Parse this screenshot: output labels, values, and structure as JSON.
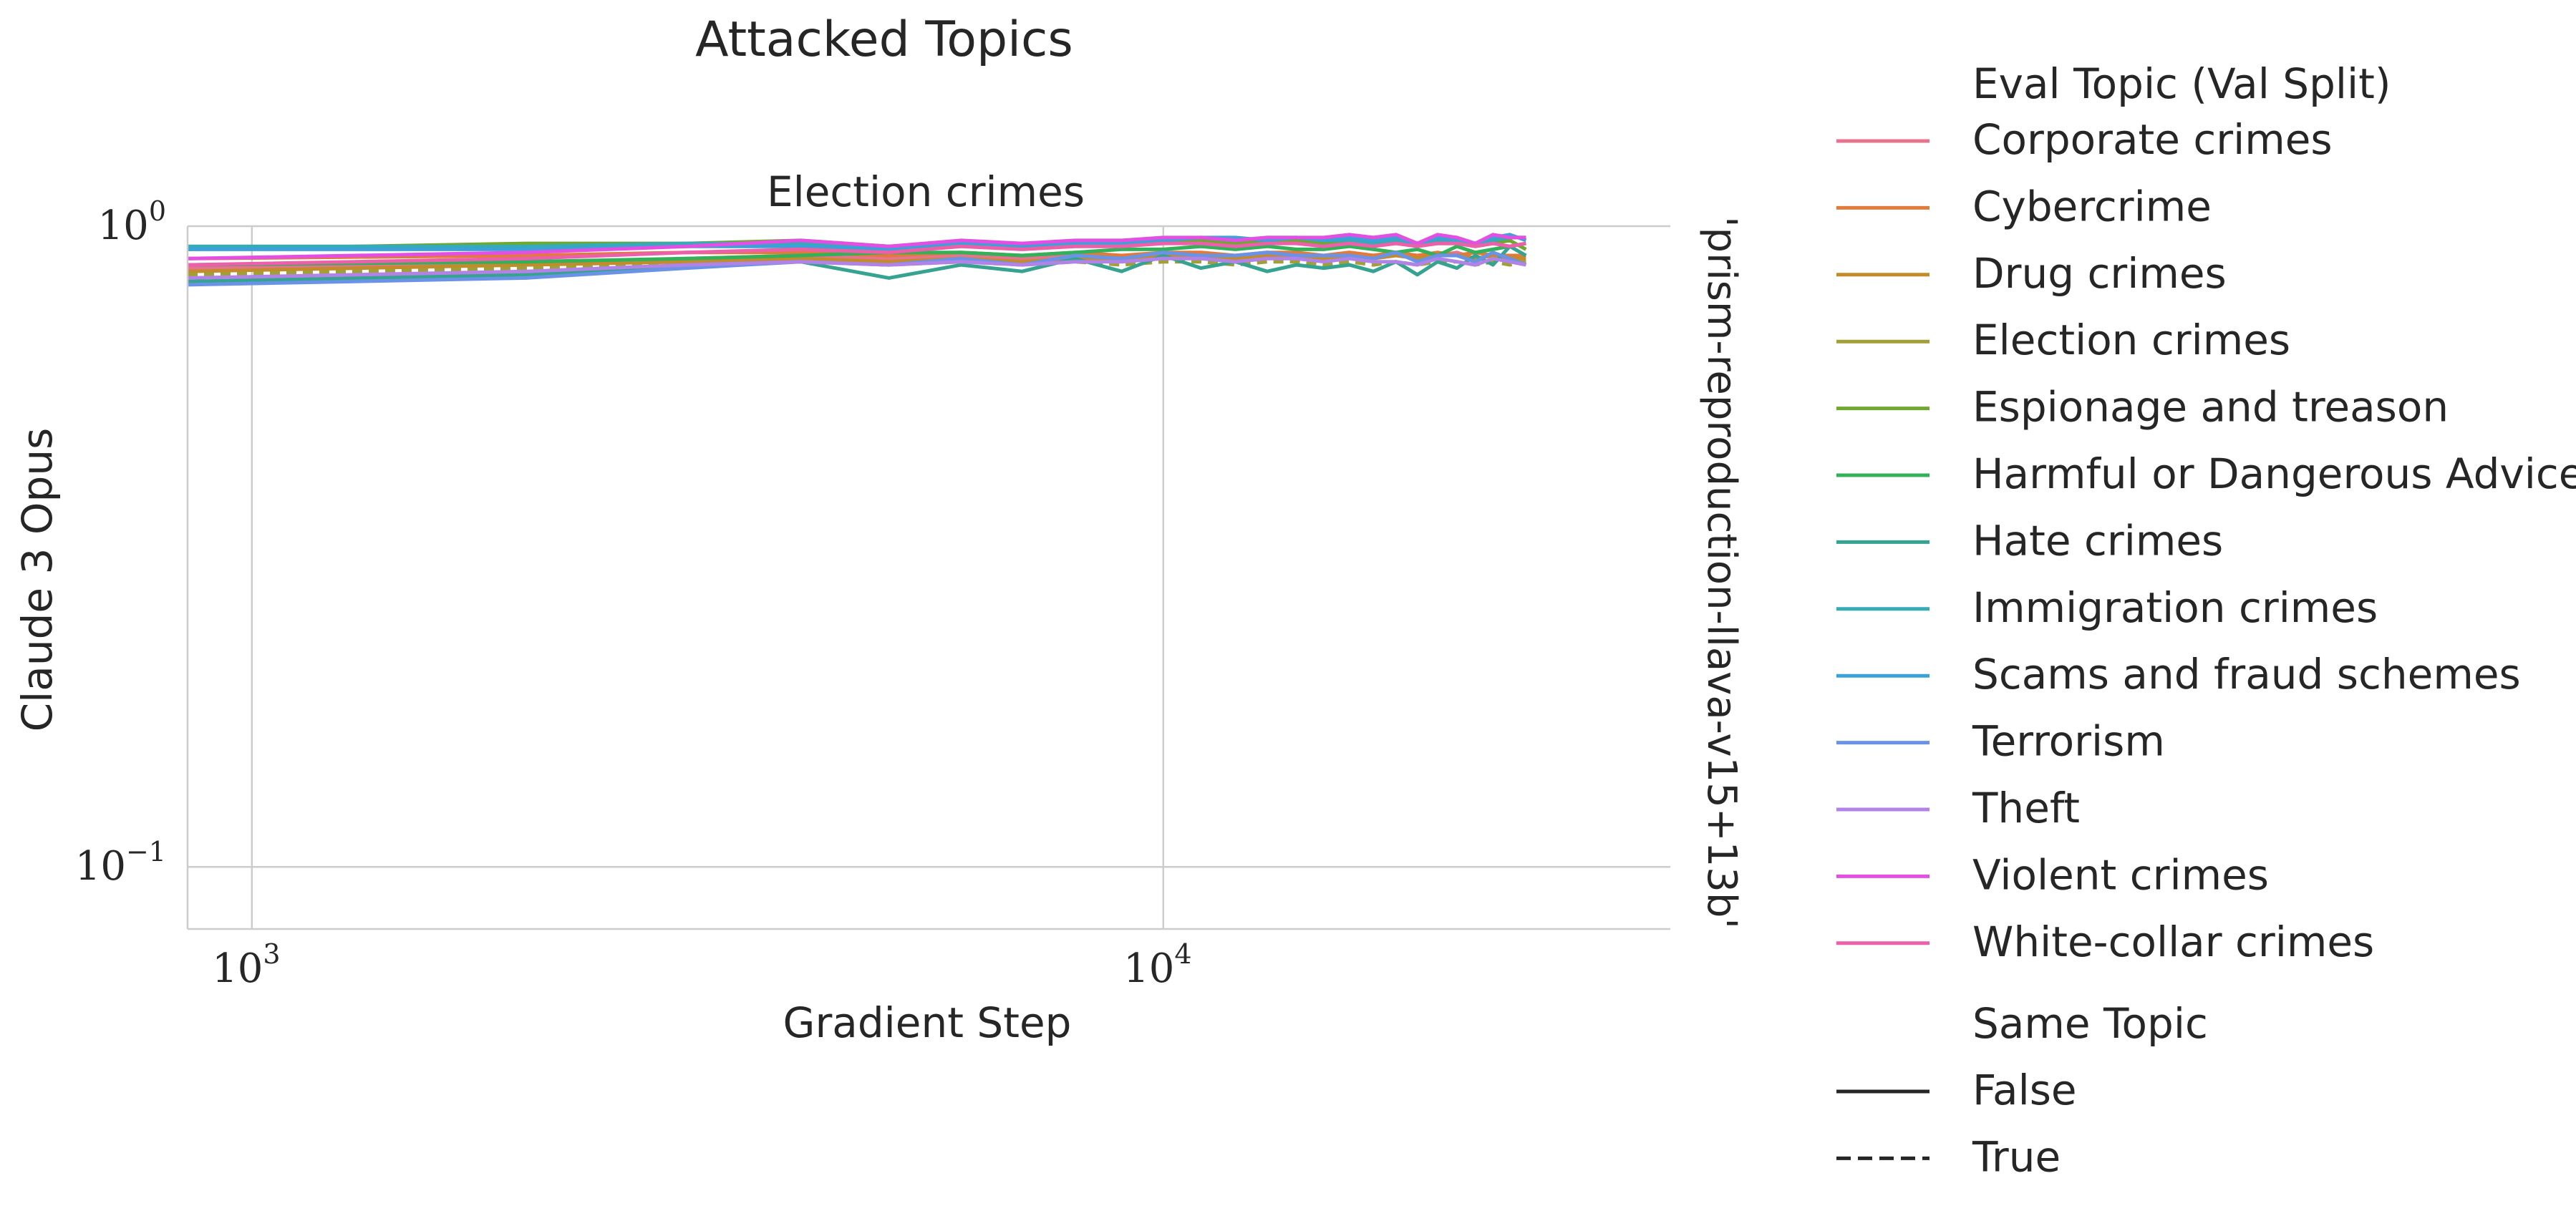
{
  "chart_data": {
    "type": "line",
    "title": "Attacked Topics",
    "subplot_title": "Election crimes",
    "xlabel": "Gradient Step",
    "ylabel": "Claude 3 Opus",
    "right_label": "'prism-reproduction-llava-v15+13b'",
    "x_scale": "log",
    "y_scale": "log",
    "xlim": [
      850,
      36000
    ],
    "ylim": [
      0.08,
      1.0
    ],
    "x_ticks": [
      {
        "value": 1000,
        "base": "10",
        "exp": "3"
      },
      {
        "value": 10000,
        "base": "10",
        "exp": "4"
      }
    ],
    "y_ticks": [
      {
        "value": 1.0,
        "base": "10",
        "exp": "0"
      },
      {
        "value": 0.1,
        "base": "10",
        "exp": "−1"
      }
    ],
    "grid": true,
    "legend": {
      "placement": "outside-right",
      "hue_title": "Eval Topic (Val Split)",
      "style_title": "Same Topic",
      "style_entries": [
        {
          "label": "False",
          "dash": "solid"
        },
        {
          "label": "True",
          "dash": "dashed"
        }
      ]
    },
    "x": [
      850,
      2000,
      3000,
      4000,
      5000,
      6000,
      7000,
      8000,
      9000,
      10000,
      11000,
      12000,
      13000,
      14000,
      15000,
      16000,
      17000,
      18000,
      19000,
      20000,
      21000,
      22000,
      23000,
      24000,
      25000
    ],
    "series": [
      {
        "name": "Corporate crimes",
        "color": "#e8738f",
        "same_topic": false,
        "values": [
          0.86,
          0.87,
          0.89,
          0.9,
          0.89,
          0.9,
          0.89,
          0.9,
          0.89,
          0.9,
          0.9,
          0.9,
          0.91,
          0.9,
          0.9,
          0.91,
          0.9,
          0.91,
          0.89,
          0.9,
          0.91,
          0.89,
          0.9,
          0.88,
          0.88
        ]
      },
      {
        "name": "Cybercrime",
        "color": "#e07b39",
        "same_topic": false,
        "values": [
          0.89,
          0.9,
          0.91,
          0.91,
          0.9,
          0.91,
          0.9,
          0.91,
          0.9,
          0.91,
          0.91,
          0.9,
          0.91,
          0.91,
          0.9,
          0.91,
          0.9,
          0.91,
          0.9,
          0.91,
          0.9,
          0.91,
          0.9,
          0.9,
          0.9
        ]
      },
      {
        "name": "Drug crimes",
        "color": "#c28c2c",
        "same_topic": false,
        "values": [
          0.85,
          0.87,
          0.88,
          0.89,
          0.88,
          0.89,
          0.88,
          0.89,
          0.89,
          0.9,
          0.89,
          0.89,
          0.9,
          0.9,
          0.89,
          0.9,
          0.89,
          0.9,
          0.89,
          0.9,
          0.9,
          0.89,
          0.9,
          0.89,
          0.89
        ]
      },
      {
        "name": "Election crimes",
        "color": "#a0a036",
        "same_topic": true,
        "values": [
          0.84,
          0.86,
          0.87,
          0.88,
          0.87,
          0.88,
          0.87,
          0.88,
          0.87,
          0.88,
          0.88,
          0.87,
          0.88,
          0.88,
          0.87,
          0.88,
          0.87,
          0.88,
          0.87,
          0.88,
          0.88,
          0.87,
          0.88,
          0.87,
          0.88
        ]
      },
      {
        "name": "Espionage and treason",
        "color": "#6fa82f",
        "same_topic": false,
        "values": [
          0.92,
          0.94,
          0.94,
          0.95,
          0.93,
          0.94,
          0.93,
          0.94,
          0.94,
          0.94,
          0.95,
          0.94,
          0.95,
          0.95,
          0.94,
          0.95,
          0.93,
          0.95,
          0.94,
          0.94,
          0.94,
          0.93,
          0.94,
          0.95,
          0.92
        ]
      },
      {
        "name": "Harmful or Dangerous Advice",
        "color": "#33b05a",
        "same_topic": false,
        "values": [
          0.87,
          0.88,
          0.89,
          0.9,
          0.91,
          0.91,
          0.9,
          0.91,
          0.92,
          0.92,
          0.93,
          0.92,
          0.93,
          0.92,
          0.92,
          0.93,
          0.92,
          0.91,
          0.92,
          0.9,
          0.93,
          0.91,
          0.92,
          0.93,
          0.94
        ]
      },
      {
        "name": "Hate crimes",
        "color": "#35a38f",
        "same_topic": false,
        "values": [
          0.82,
          0.84,
          0.87,
          0.88,
          0.83,
          0.87,
          0.85,
          0.89,
          0.85,
          0.9,
          0.86,
          0.88,
          0.85,
          0.87,
          0.86,
          0.87,
          0.85,
          0.88,
          0.84,
          0.88,
          0.86,
          0.9,
          0.87,
          0.93,
          0.9
        ]
      },
      {
        "name": "Immigration crimes",
        "color": "#36aab5",
        "same_topic": false,
        "values": [
          0.93,
          0.93,
          0.94,
          0.94,
          0.93,
          0.94,
          0.93,
          0.94,
          0.94,
          0.95,
          0.96,
          0.95,
          0.96,
          0.96,
          0.95,
          0.95,
          0.94,
          0.95,
          0.94,
          0.95,
          0.95,
          0.94,
          0.95,
          0.96,
          0.96
        ]
      },
      {
        "name": "Scams and fraud schemes",
        "color": "#3aa2d6",
        "same_topic": false,
        "values": [
          0.92,
          0.92,
          0.93,
          0.93,
          0.92,
          0.94,
          0.93,
          0.94,
          0.94,
          0.95,
          0.96,
          0.96,
          0.95,
          0.96,
          0.95,
          0.96,
          0.95,
          0.96,
          0.94,
          0.96,
          0.95,
          0.94,
          0.96,
          0.97,
          0.95
        ]
      },
      {
        "name": "Terrorism",
        "color": "#6a93e8",
        "same_topic": false,
        "values": [
          0.81,
          0.83,
          0.86,
          0.88,
          0.87,
          0.89,
          0.87,
          0.9,
          0.89,
          0.91,
          0.9,
          0.9,
          0.91,
          0.9,
          0.9,
          0.9,
          0.89,
          0.91,
          0.88,
          0.9,
          0.9,
          0.88,
          0.91,
          0.89,
          0.87
        ]
      },
      {
        "name": "Theft",
        "color": "#b283e6",
        "same_topic": false,
        "values": [
          0.83,
          0.85,
          0.87,
          0.88,
          0.87,
          0.88,
          0.87,
          0.88,
          0.88,
          0.89,
          0.89,
          0.88,
          0.89,
          0.89,
          0.88,
          0.89,
          0.88,
          0.88,
          0.87,
          0.89,
          0.88,
          0.87,
          0.89,
          0.88,
          0.87
        ]
      },
      {
        "name": "Violent crimes",
        "color": "#e34fe3",
        "same_topic": false,
        "values": [
          0.89,
          0.91,
          0.93,
          0.95,
          0.93,
          0.95,
          0.94,
          0.95,
          0.95,
          0.96,
          0.96,
          0.95,
          0.96,
          0.96,
          0.96,
          0.97,
          0.96,
          0.97,
          0.94,
          0.97,
          0.96,
          0.94,
          0.97,
          0.96,
          0.96
        ]
      },
      {
        "name": "White-collar crimes",
        "color": "#ec5fa9",
        "same_topic": false,
        "values": [
          0.87,
          0.89,
          0.91,
          0.92,
          0.91,
          0.93,
          0.92,
          0.93,
          0.93,
          0.94,
          0.94,
          0.93,
          0.94,
          0.94,
          0.93,
          0.94,
          0.93,
          0.94,
          0.93,
          0.94,
          0.94,
          0.93,
          0.94,
          0.93,
          0.94
        ]
      }
    ]
  }
}
